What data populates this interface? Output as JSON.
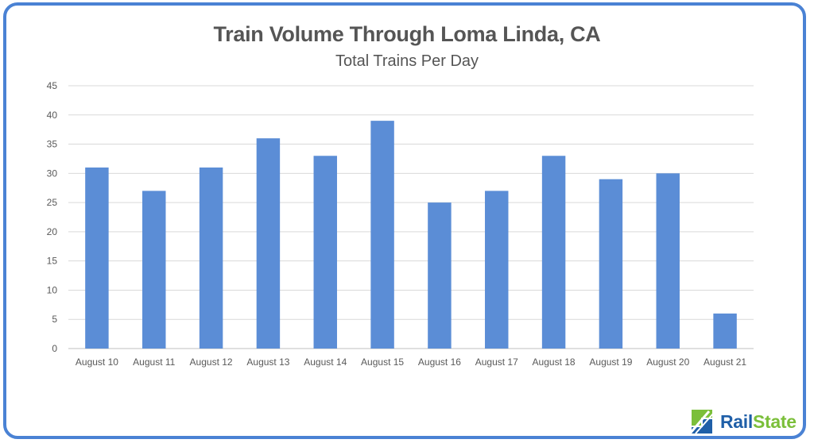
{
  "brand": {
    "name_part1": "Rail",
    "name_part2": "State",
    "colors": {
      "blue": "#1f5fa8",
      "green": "#7bbf3a",
      "frame": "#4a82d4"
    }
  },
  "chart_data": {
    "type": "bar",
    "title": "Train Volume Through Loma Linda, CA",
    "subtitle": "Total Trains Per Day",
    "xlabel": "",
    "ylabel": "",
    "categories": [
      "August 10",
      "August 11",
      "August 12",
      "August 13",
      "August 14",
      "August 15",
      "August 16",
      "August 17",
      "August 18",
      "August 19",
      "August 20",
      "August 21"
    ],
    "values": [
      31,
      27,
      31,
      36,
      33,
      39,
      25,
      27,
      33,
      29,
      30,
      6
    ],
    "ylim": [
      0,
      45
    ],
    "yticks": [
      "0",
      "5",
      "10",
      "15",
      "20",
      "25",
      "30",
      "35",
      "40",
      "45"
    ],
    "grid": true,
    "legend": "none",
    "bar_color": "#5b8dd6"
  }
}
